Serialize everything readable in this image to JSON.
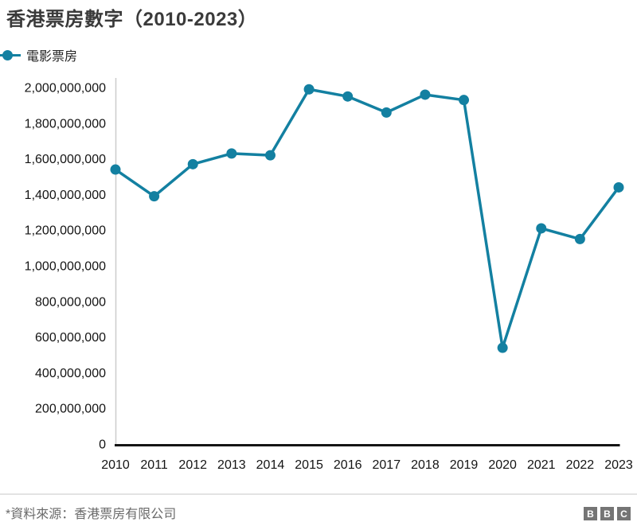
{
  "header": {
    "title": "香港票房數字（2010-2023）"
  },
  "legend": {
    "label": "電影票房",
    "marker_color": "#1380a1"
  },
  "chart_data": {
    "type": "line",
    "title": "香港票房數字（2010-2023）",
    "x": [
      2010,
      2011,
      2012,
      2013,
      2014,
      2015,
      2016,
      2017,
      2018,
      2019,
      2020,
      2021,
      2022,
      2023
    ],
    "series": [
      {
        "name": "電影票房",
        "values": [
          1540000000,
          1390000000,
          1570000000,
          1630000000,
          1620000000,
          1990000000,
          1950000000,
          1860000000,
          1960000000,
          1930000000,
          540000000,
          1210000000,
          1150000000,
          1440000000
        ]
      }
    ],
    "xlabel": "",
    "ylabel": "",
    "ylim": [
      0,
      2000000000
    ],
    "ytick_step": 200000000,
    "grid": false,
    "legend_position": "top-left",
    "line_color": "#1380a1",
    "axis_color": "#141414",
    "y_axis_line_color": "#cccccc"
  },
  "footer": {
    "source": "*資料來源：香港票房有限公司",
    "logo_letters": [
      "B",
      "B",
      "C"
    ]
  }
}
